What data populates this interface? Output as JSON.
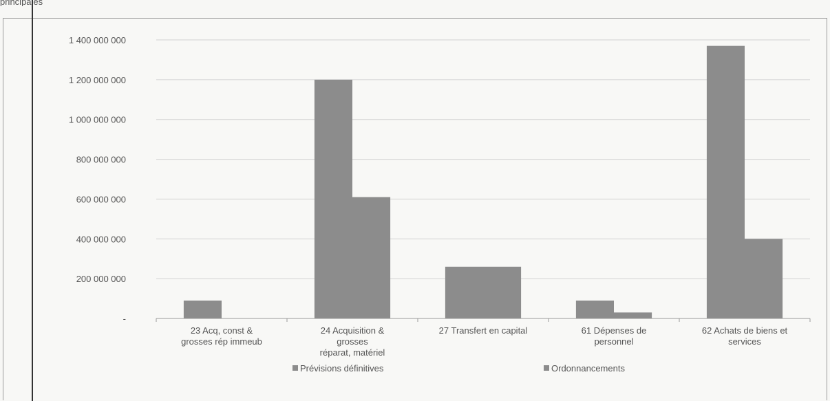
{
  "header": {
    "text": "principales"
  },
  "chart_data": {
    "type": "bar",
    "categories": [
      [
        "23 Acq, const &",
        "grosses rép immeub"
      ],
      [
        "24 Acquisition &",
        "grosses",
        "réparat, matériel"
      ],
      [
        "27 Transfert en capital"
      ],
      [
        "61 Dépenses de",
        "personnel"
      ],
      [
        "62 Achats de biens et",
        "services"
      ]
    ],
    "series": [
      {
        "name": "Prévisions définitives",
        "values": [
          90000000,
          1200000000,
          260000000,
          90000000,
          1370000000
        ]
      },
      {
        "name": "Ordonnancements",
        "values": [
          0,
          610000000,
          260000000,
          30000000,
          400000000
        ]
      }
    ],
    "ylim": [
      0,
      1400000000
    ],
    "yticks": [
      0,
      200000000,
      400000000,
      600000000,
      800000000,
      1000000000,
      1200000000,
      1400000000
    ],
    "ytick_labels": [
      "-",
      "200 000 000",
      "400 000 000",
      "600 000 000",
      "800 000 000",
      "1 000 000 000",
      "1 200 000 000",
      "1 400 000 000"
    ],
    "grid": true,
    "legend_position": "bottom",
    "colors": {
      "series1": "#8c8c8c",
      "series2": "#8c8c8c",
      "grid": "#d2d2d2",
      "axis": "#9a9a9a"
    }
  }
}
